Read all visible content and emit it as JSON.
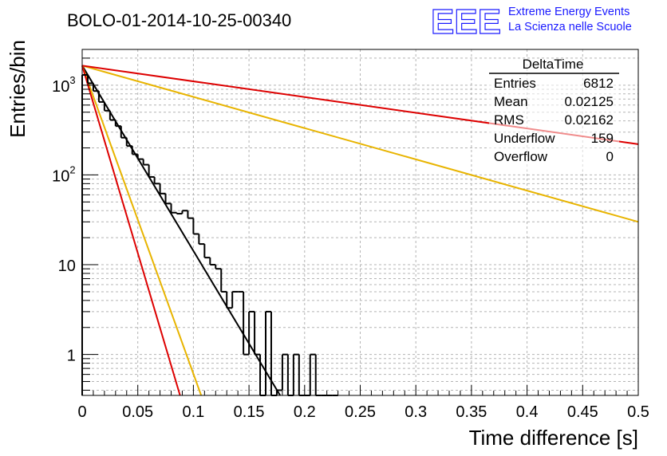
{
  "title": "BOLO-01-2014-10-25-00340",
  "logo": {
    "letters": "EEE",
    "line1": "Extreme Energy Events",
    "line2": "La Scienza nelle Scuole",
    "color": "#1a1aff"
  },
  "stats_box": {
    "name": "DeltaTime",
    "rows": [
      {
        "label": "Entries",
        "value": "6812"
      },
      {
        "label": "Mean",
        "value": "0.02125"
      },
      {
        "label": "RMS",
        "value": "0.02162"
      },
      {
        "label": "Underflow",
        "value": "159"
      },
      {
        "label": "Overflow",
        "value": "0"
      }
    ]
  },
  "chart_data": {
    "type": "histogram",
    "title": "BOLO-01-2014-10-25-00340",
    "xlabel": "Time difference [s]",
    "ylabel": "Entries/bin",
    "xlim": [
      0,
      0.5
    ],
    "ylim": [
      0.35,
      2500
    ],
    "yscale": "log",
    "grid": true,
    "x_ticks": [
      "0",
      "0.05",
      "0.1",
      "0.15",
      "0.2",
      "0.25",
      "0.3",
      "0.35",
      "0.4",
      "0.45",
      "0.5"
    ],
    "y_ticks": [
      {
        "value": 1,
        "base": "1",
        "exp": ""
      },
      {
        "value": 10,
        "base": "10",
        "exp": ""
      },
      {
        "value": 100,
        "base": "10",
        "exp": "2"
      },
      {
        "value": 1000,
        "base": "10",
        "exp": "3"
      }
    ],
    "bin_width": 0.005,
    "bin_counts": [
      1300,
      1050,
      860,
      650,
      520,
      410,
      350,
      260,
      210,
      170,
      150,
      130,
      95,
      80,
      62,
      48,
      38,
      37,
      40,
      33,
      22,
      17,
      12,
      10,
      9,
      5,
      3.3,
      5,
      5,
      1,
      3,
      1,
      0,
      3,
      0,
      0.4,
      1,
      0,
      1,
      0,
      0,
      1,
      0,
      0,
      0,
      0
    ],
    "fits": [
      {
        "color": "#000000",
        "x": [
          0,
          0.178
        ],
        "y": [
          1650,
          0.35
        ]
      },
      {
        "color": "#e8b400",
        "x": [
          0,
          0.107
        ],
        "y": [
          1650,
          0.35
        ]
      },
      {
        "color": "#dd0000",
        "x": [
          0,
          0.088
        ],
        "y": [
          1650,
          0.35
        ]
      },
      {
        "color": "#e8b400",
        "x": [
          0,
          0.5
        ],
        "y": [
          1650,
          30
        ]
      },
      {
        "color": "#dd0000",
        "x": [
          0,
          0.5
        ],
        "y": [
          1650,
          220
        ]
      }
    ],
    "colors": {
      "histogram": "#000000",
      "grid": "#b4b4b4"
    }
  }
}
